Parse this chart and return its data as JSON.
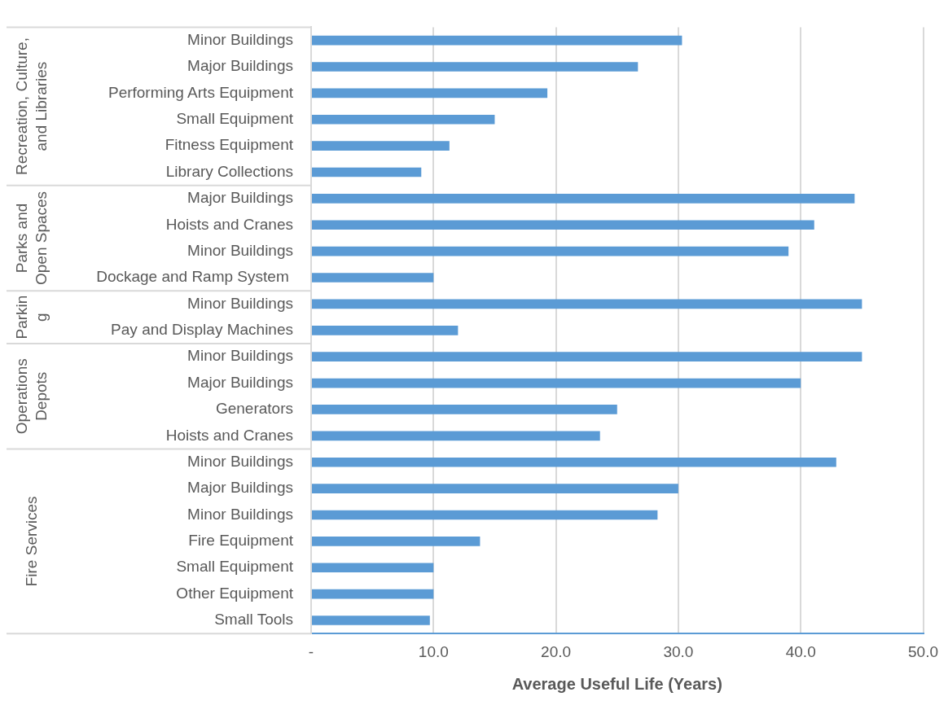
{
  "chart_data": {
    "type": "bar",
    "orientation": "horizontal",
    "xlabel": "Average Useful Life (Years)",
    "categories": [
      "Minor Buildings",
      "Major Buildings",
      "Performing Arts Equipment",
      "Small Equipment",
      "Fitness Equipment",
      "Library Collections",
      "Major Buildings",
      "Hoists and Cranes",
      "Minor Buildings",
      "Dockage and Ramp System ",
      "Minor Buildings",
      "Pay and Display Machines",
      "Minor Buildings",
      "Major Buildings",
      "Generators",
      "Hoists and Cranes",
      "Minor Buildings",
      "Major Buildings",
      "Minor Buildings",
      "Fire Equipment",
      "Small Equipment",
      "Other Equipment",
      "Small Tools"
    ],
    "values": [
      30.3,
      26.7,
      19.3,
      15.0,
      11.3,
      9.0,
      44.4,
      41.1,
      39.0,
      10.0,
      45.0,
      12.0,
      45.0,
      40.0,
      25.0,
      23.6,
      42.9,
      30.0,
      28.3,
      13.8,
      10.0,
      10.0,
      9.7
    ],
    "color": "#5b9bd5",
    "xlim": [
      0,
      50
    ],
    "xticks": [
      {
        "value": 0,
        "label": "-"
      },
      {
        "value": 10,
        "label": "10.0"
      },
      {
        "value": 20,
        "label": "20.0"
      },
      {
        "value": 30,
        "label": "30.0"
      },
      {
        "value": 40,
        "label": "40.0"
      },
      {
        "value": 50,
        "label": "50.0"
      }
    ],
    "annotations": [
      "Recreation, Culture, and Libraries",
      "Parks and Open Spaces",
      "Parking",
      "Operations Depots",
      "Fire Services"
    ],
    "grid": "x",
    "legend": false
  }
}
